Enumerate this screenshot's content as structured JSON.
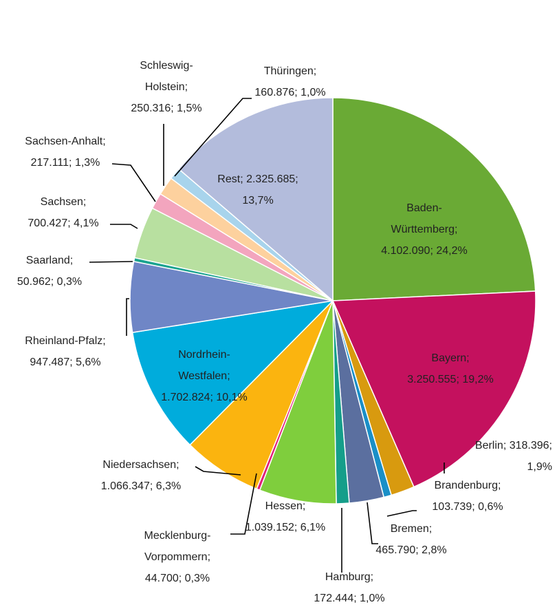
{
  "chart_data": {
    "type": "pie",
    "label_separator": "; ",
    "categories": [
      "Baden-Württemberg",
      "Bayern",
      "Berlin",
      "Brandenburg",
      "Bremen",
      "Hamburg",
      "Hessen",
      "Mecklenburg-Vorpommern",
      "Niedersachsen",
      "Nordrhein-Westfalen",
      "Rheinland-Pfalz",
      "Saarland",
      "Sachsen",
      "Sachsen-Anhalt",
      "Schleswig-Holstein",
      "Thüringen",
      "Rest"
    ],
    "values": [
      4102090,
      3250555,
      318396,
      103739,
      465790,
      172444,
      1039152,
      44700,
      1066347,
      1702824,
      947487,
      50962,
      700427,
      217111,
      250316,
      160876,
      2325685
    ],
    "value_labels": [
      "4.102.090",
      "3.250.555",
      "318.396",
      "103.739",
      "465.790",
      "172.444",
      "1.039.152",
      "44.700",
      "1.066.347",
      "1.702.824",
      "947.487",
      "50.962",
      "700.427",
      "217.111",
      "250.316",
      "160.876",
      "2.325.685"
    ],
    "shares": [
      24.2,
      19.2,
      1.9,
      0.6,
      2.8,
      1.0,
      6.1,
      0.3,
      6.3,
      10.1,
      5.6,
      0.3,
      4.1,
      1.3,
      1.5,
      1.0,
      13.7
    ],
    "share_labels": [
      "24,2%",
      "19,2%",
      "1,9%",
      "0,6%",
      "2,8%",
      "1,0%",
      "6,1%",
      "0,3%",
      "6,3%",
      "10,1%",
      "5,6%",
      "0,3%",
      "4,1%",
      "1,3%",
      "1,5%",
      "1,0%",
      "13,7%"
    ],
    "colors": [
      "#6aaa35",
      "#c4115e",
      "#d89a0f",
      "#1a8fc7",
      "#5b6f9f",
      "#159e8a",
      "#7fce3d",
      "#e0207a",
      "#fbb40f",
      "#00acdc",
      "#6f86c6",
      "#1aa38f",
      "#b8e0a0",
      "#f3a5be",
      "#fdd19e",
      "#a8d4ec",
      "#b3bcdc"
    ]
  }
}
